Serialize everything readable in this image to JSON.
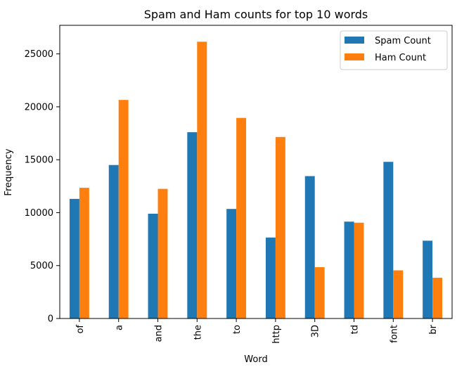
{
  "chart_data": {
    "type": "bar",
    "title": "Spam and Ham counts for top 10 words",
    "xlabel": "Word",
    "ylabel": "Frequency",
    "categories": [
      "of",
      "a",
      "and",
      "the",
      "to",
      "http",
      "3D",
      "td",
      "font",
      "br"
    ],
    "series": [
      {
        "name": "Spam Count",
        "color": "#1f77b4",
        "values": [
          11300,
          14500,
          9900,
          17600,
          10350,
          7650,
          13450,
          9150,
          14800,
          7350
        ]
      },
      {
        "name": "Ham Count",
        "color": "#ff7f0e",
        "values": [
          12350,
          20650,
          12250,
          26150,
          18950,
          17150,
          4850,
          9050,
          4550,
          3850
        ]
      }
    ],
    "ylim": [
      0,
      27700
    ],
    "yticks": [
      0,
      5000,
      10000,
      15000,
      20000,
      25000
    ],
    "ytick_labels": [
      "0",
      "5000",
      "10000",
      "15000",
      "20000",
      "25000"
    ],
    "legend_position": "top-right",
    "grid": false
  }
}
